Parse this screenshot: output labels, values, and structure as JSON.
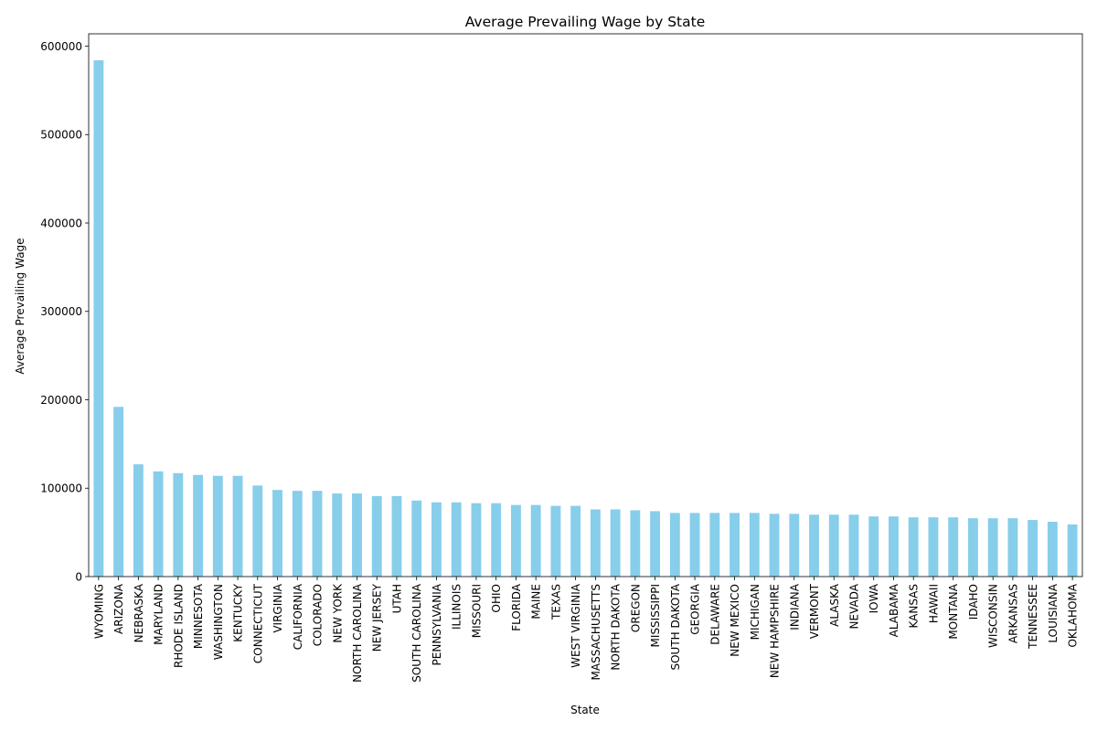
{
  "chart_data": {
    "type": "bar",
    "title": "Average Prevailing Wage by State",
    "xlabel": "State",
    "ylabel": "Average Prevailing Wage",
    "ylim": [
      0,
      614000
    ],
    "yticks": [
      0,
      100000,
      200000,
      300000,
      400000,
      500000,
      600000
    ],
    "ytick_labels": [
      "0",
      "100000",
      "200000",
      "300000",
      "400000",
      "500000",
      "600000"
    ],
    "grid": false,
    "legend": "none",
    "bar_color": "#87ceeb",
    "categories": [
      "WYOMING",
      "ARIZONA",
      "NEBRASKA",
      "MARYLAND",
      "RHODE ISLAND",
      "MINNESOTA",
      "WASHINGTON",
      "KENTUCKY",
      "CONNECTICUT",
      "VIRGINIA",
      "CALIFORNIA",
      "COLORADO",
      "NEW YORK",
      "NORTH CAROLINA",
      "NEW JERSEY",
      "UTAH",
      "SOUTH CAROLINA",
      "PENNSYLVANIA",
      "ILLINOIS",
      "MISSOURI",
      "OHIO",
      "FLORIDA",
      "MAINE",
      "TEXAS",
      "WEST VIRGINIA",
      "MASSACHUSETTS",
      "NORTH DAKOTA",
      "OREGON",
      "MISSISSIPPI",
      "SOUTH DAKOTA",
      "GEORGIA",
      "DELAWARE",
      "NEW MEXICO",
      "MICHIGAN",
      "NEW HAMPSHIRE",
      "INDIANA",
      "VERMONT",
      "ALASKA",
      "NEVADA",
      "IOWA",
      "ALABAMA",
      "KANSAS",
      "HAWAII",
      "MONTANA",
      "IDAHO",
      "WISCONSIN",
      "ARKANSAS",
      "TENNESSEE",
      "LOUISIANA",
      "OKLAHOMA"
    ],
    "values": [
      584000,
      192000,
      127000,
      119000,
      117000,
      115000,
      114000,
      114000,
      103000,
      98000,
      97000,
      97000,
      94000,
      94000,
      91000,
      91000,
      86000,
      84000,
      84000,
      83000,
      83000,
      81000,
      81000,
      80000,
      80000,
      76000,
      76000,
      75000,
      74000,
      72000,
      72000,
      72000,
      72000,
      72000,
      71000,
      71000,
      70000,
      70000,
      70000,
      68000,
      68000,
      67000,
      67000,
      67000,
      66000,
      66000,
      66000,
      64000,
      62000,
      59000
    ]
  }
}
